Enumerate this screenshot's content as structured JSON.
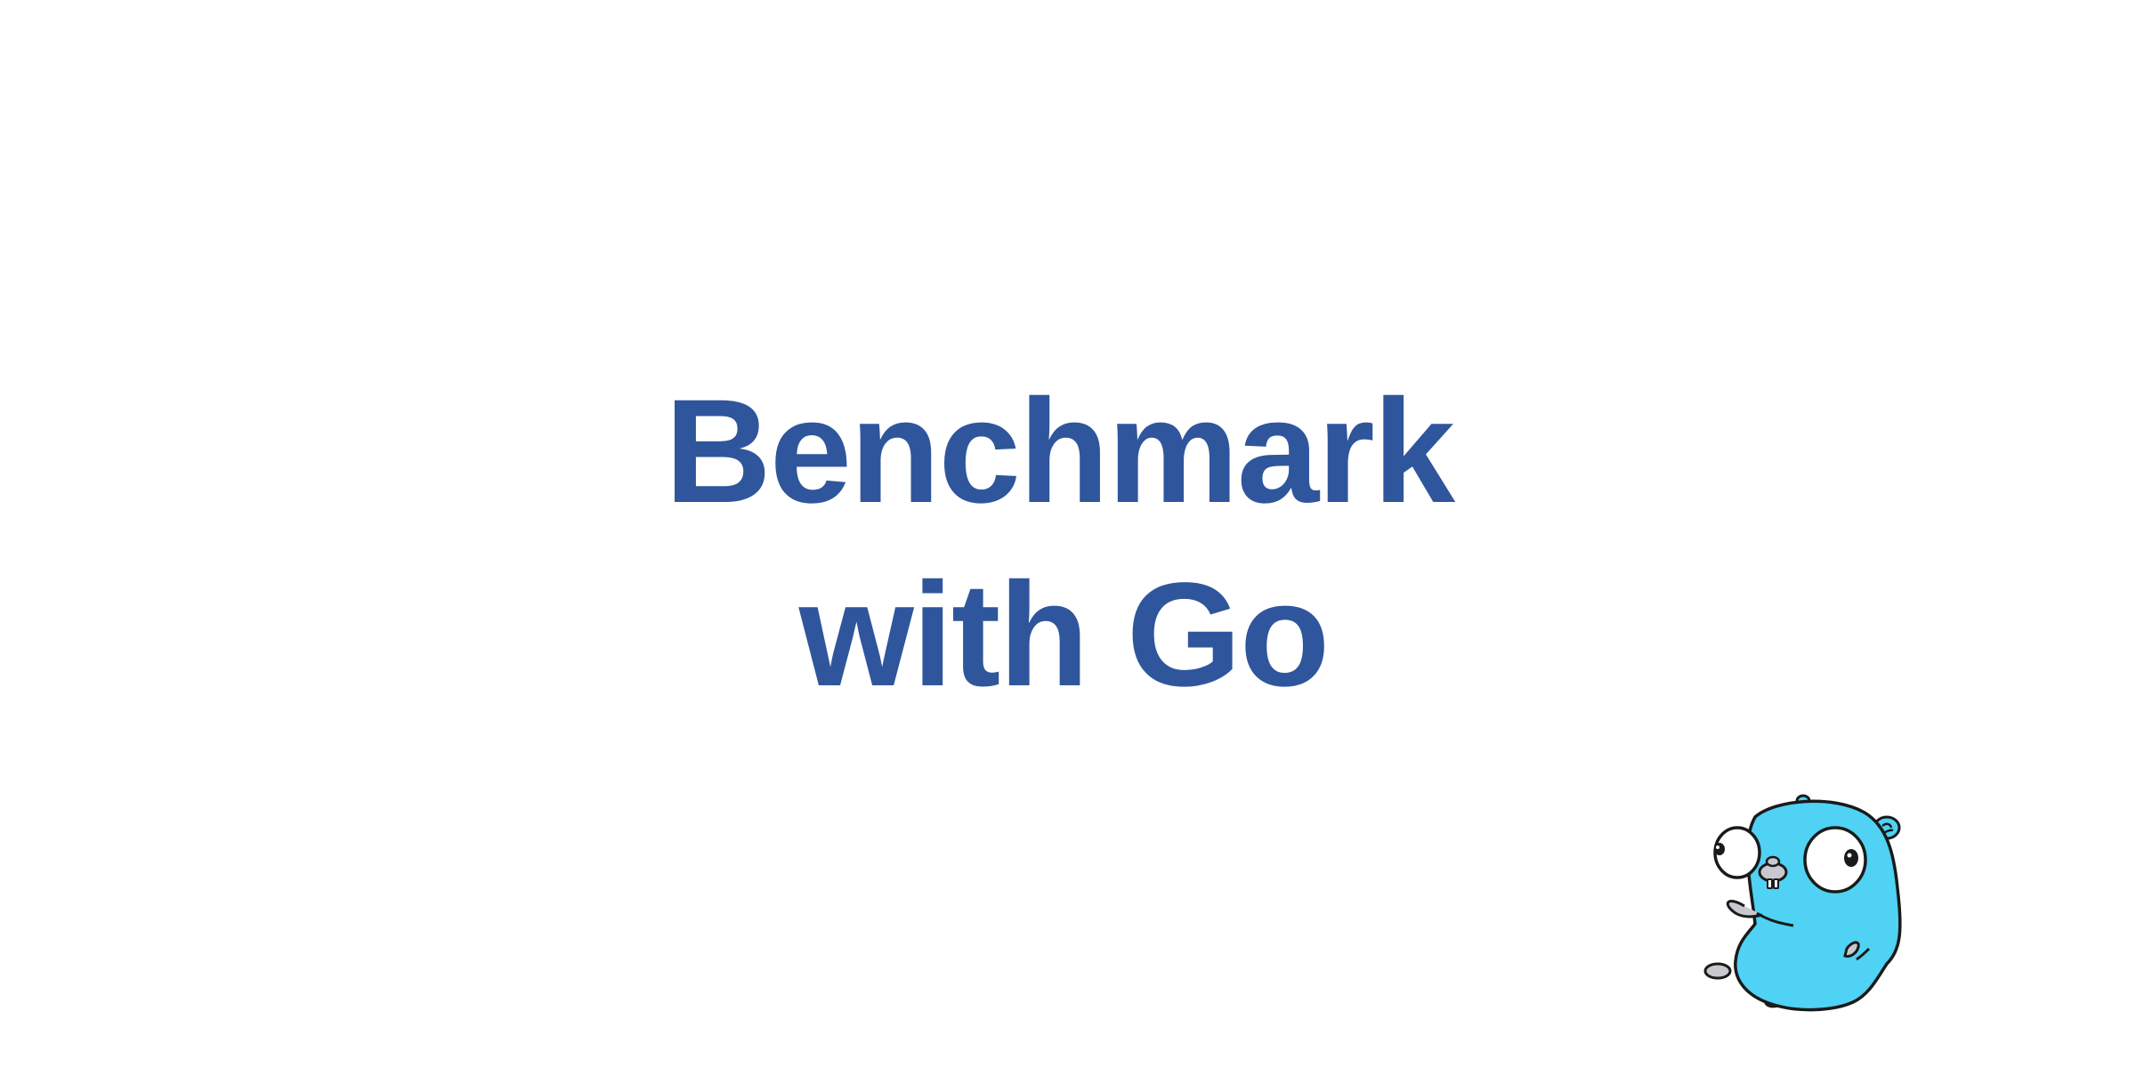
{
  "slide": {
    "title_line_1": "Benchmark",
    "title_line_2": "with Go"
  },
  "colors": {
    "title": "#2f569c",
    "gopher_body": "#4fd2f3",
    "gopher_outline": "#1a1a1a",
    "gopher_teeth": "#c8c8cf",
    "background": "#ffffff"
  },
  "icons": {
    "mascot": "go-gopher-icon"
  }
}
